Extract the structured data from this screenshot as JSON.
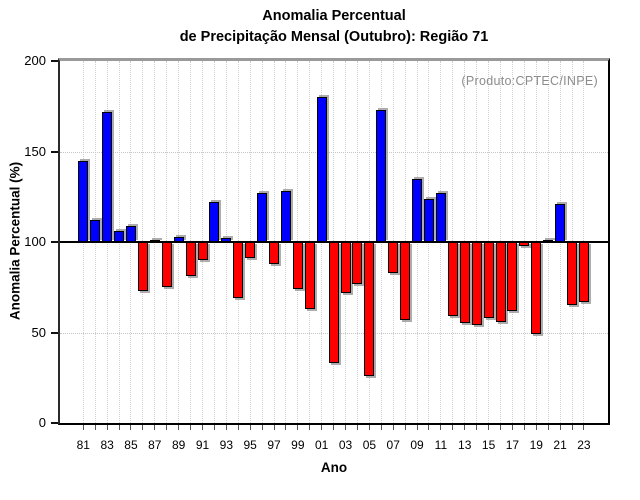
{
  "title": {
    "line1": "Anomalia Percentual",
    "line2": "de Precipitação Mensal (Outubro): Região 71"
  },
  "annotation": "(Produto:CPTEC/INPE)",
  "axes": {
    "ylabel": "Anomalia Percentual (%)",
    "xlabel": "Ano"
  },
  "chart_data": {
    "type": "bar",
    "title": "Anomalia Percentual de Precipitação Mensal (Outubro): Região 71",
    "xlabel": "Ano",
    "ylabel": "Anomalia Percentual (%)",
    "ylim": [
      0,
      200
    ],
    "yticks": [
      0,
      50,
      100,
      150,
      200
    ],
    "hgrid_at": [
      50,
      150
    ],
    "baseline": 100,
    "grid": "dotted vertical line at every year; dotted horizontal at 50 and 150; solid black line at 100",
    "legend_position": "none",
    "xtick_label_every": 2,
    "categories": [
      "81",
      "82",
      "83",
      "84",
      "85",
      "86",
      "87",
      "88",
      "89",
      "90",
      "91",
      "92",
      "93",
      "94",
      "95",
      "96",
      "97",
      "98",
      "99",
      "00",
      "01",
      "02",
      "03",
      "04",
      "05",
      "06",
      "07",
      "08",
      "09",
      "10",
      "11",
      "12",
      "13",
      "14",
      "15",
      "16",
      "17",
      "18",
      "19",
      "20",
      "21",
      "22",
      "23"
    ],
    "values": [
      145,
      112,
      172,
      106,
      109,
      73,
      101,
      75,
      103,
      81,
      90,
      122,
      102,
      69,
      91,
      127,
      88,
      128,
      74,
      63,
      180,
      33,
      72,
      77,
      26,
      173,
      83,
      57,
      135,
      124,
      127,
      59,
      55,
      54,
      58,
      56,
      62,
      98,
      49,
      101,
      121,
      65,
      67
    ],
    "colors": {
      "above_baseline": "#0000ff",
      "below_baseline": "#ff0000",
      "annotation_gray": "#8c8c8c"
    }
  }
}
